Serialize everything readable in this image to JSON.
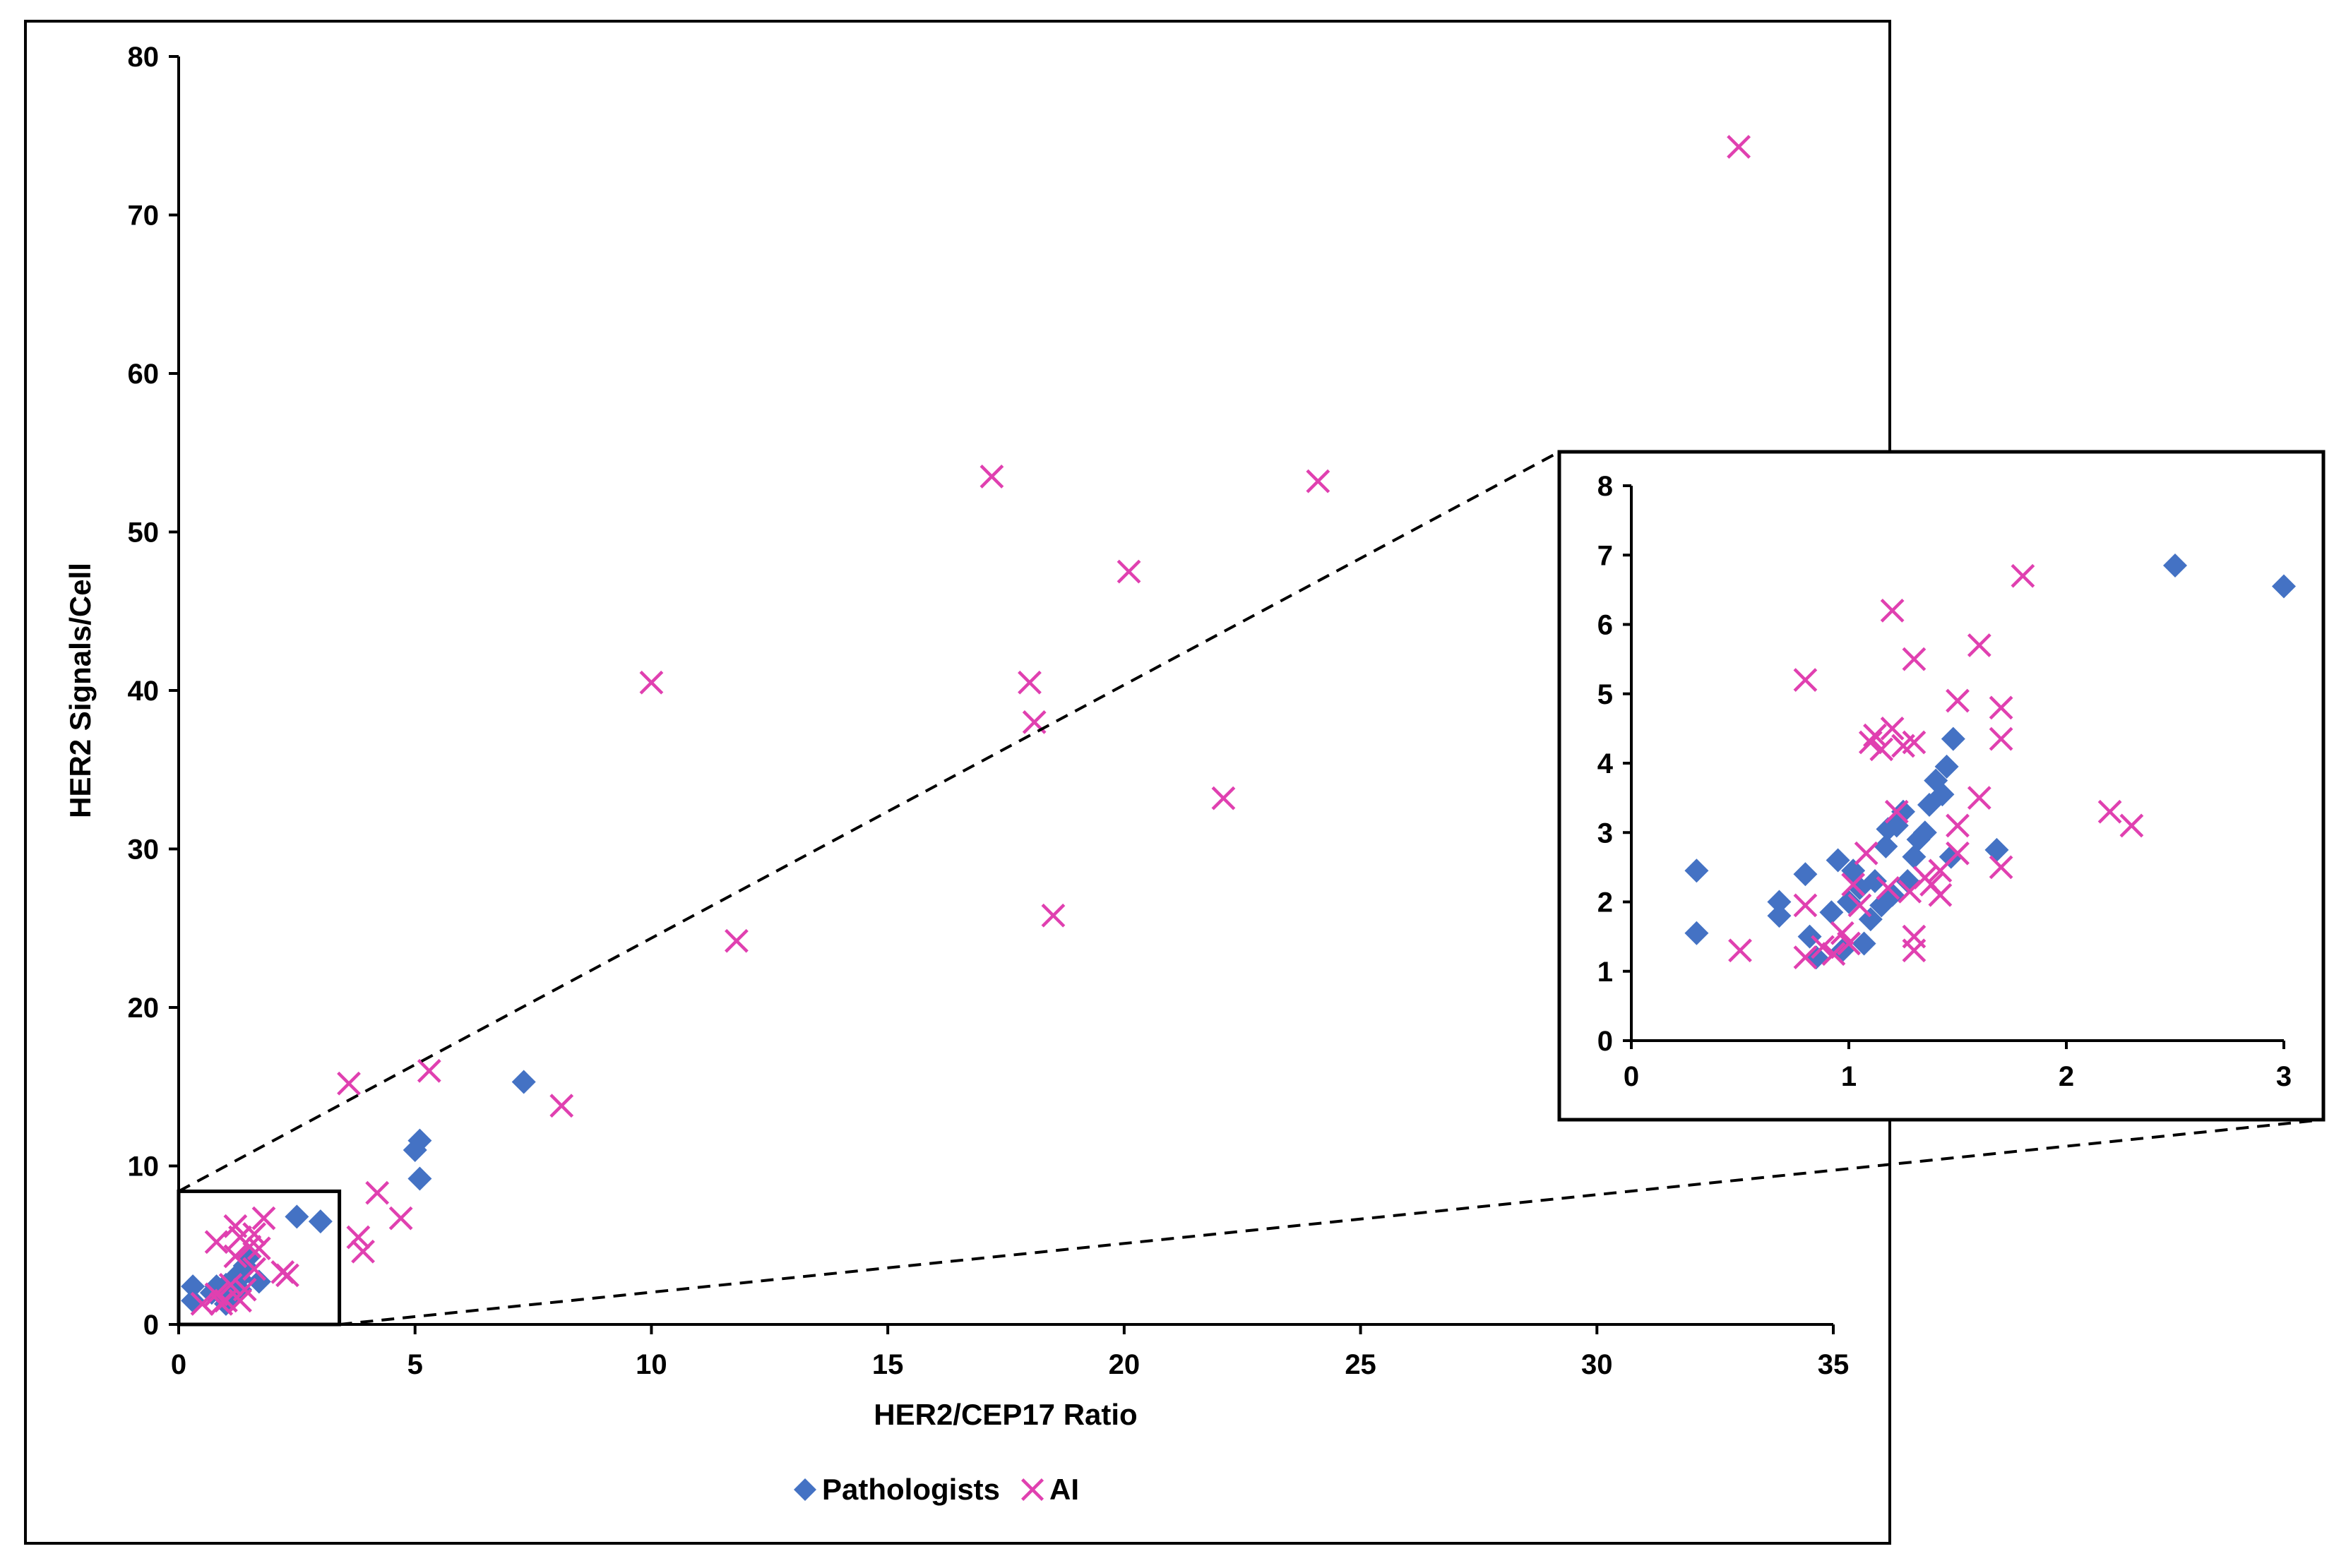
{
  "chart_data": [
    {
      "id": "main",
      "type": "scatter",
      "title": "",
      "xlabel": "HER2/CEP17 Ratio",
      "ylabel": "HER2 Signals/Cell",
      "xlim": [
        0,
        35
      ],
      "ylim": [
        0,
        80
      ],
      "xticks": [
        0,
        5,
        10,
        15,
        20,
        25,
        30,
        35
      ],
      "yticks": [
        0,
        10,
        20,
        30,
        40,
        50,
        60,
        70,
        80
      ],
      "grid": false,
      "legend": "bottom-center",
      "series": [
        {
          "name": "Pathologists",
          "marker": "diamond",
          "color": "#4472C4",
          "points": [
            [
              0.3,
              2.4
            ],
            [
              0.3,
              1.5
            ],
            [
              0.7,
              2.0
            ],
            [
              0.8,
              2.4
            ],
            [
              0.9,
              1.9
            ],
            [
              1.0,
              2.5
            ],
            [
              1.1,
              2.1
            ],
            [
              1.2,
              3.0
            ],
            [
              1.2,
              2.3
            ],
            [
              1.3,
              2.9
            ],
            [
              1.4,
              3.7
            ],
            [
              1.5,
              4.3
            ],
            [
              1.7,
              2.7
            ],
            [
              1.0,
              1.3
            ],
            [
              1.1,
              1.8
            ],
            [
              1.3,
              2.2
            ],
            [
              2.5,
              6.8
            ],
            [
              3.0,
              6.5
            ],
            [
              5.0,
              11.0
            ],
            [
              5.1,
              11.6
            ],
            [
              5.1,
              9.2
            ],
            [
              7.3,
              15.3
            ]
          ]
        },
        {
          "name": "AI",
          "marker": "x",
          "color": "#E040B0",
          "points": [
            [
              0.5,
              1.3
            ],
            [
              0.8,
              5.2
            ],
            [
              0.8,
              1.9
            ],
            [
              0.9,
              1.3
            ],
            [
              1.0,
              1.5
            ],
            [
              1.1,
              2.5
            ],
            [
              1.2,
              6.2
            ],
            [
              1.2,
              4.3
            ],
            [
              1.3,
              5.5
            ],
            [
              1.4,
              2.2
            ],
            [
              1.5,
              4.9
            ],
            [
              1.6,
              5.7
            ],
            [
              1.7,
              4.8
            ],
            [
              1.8,
              6.7
            ],
            [
              1.3,
              1.5
            ],
            [
              1.6,
              3.5
            ],
            [
              2.2,
              3.3
            ],
            [
              2.3,
              3.1
            ],
            [
              3.6,
              15.2
            ],
            [
              3.8,
              5.5
            ],
            [
              3.9,
              4.6
            ],
            [
              4.2,
              8.3
            ],
            [
              4.7,
              6.7
            ],
            [
              5.3,
              16.0
            ],
            [
              8.1,
              13.8
            ],
            [
              10.0,
              40.5
            ],
            [
              11.8,
              24.2
            ],
            [
              17.2,
              53.5
            ],
            [
              18.0,
              40.5
            ],
            [
              18.1,
              38.0
            ],
            [
              18.5,
              25.8
            ],
            [
              20.1,
              47.5
            ],
            [
              22.1,
              33.2
            ],
            [
              24.1,
              53.2
            ],
            [
              33.0,
              74.3
            ]
          ]
        }
      ],
      "zoom_box": {
        "xlim": [
          0,
          3.4
        ],
        "ylim": [
          0,
          8.4
        ]
      }
    },
    {
      "id": "inset",
      "type": "scatter",
      "title": "",
      "xlabel": "",
      "ylabel": "",
      "xlim": [
        0,
        3
      ],
      "ylim": [
        0,
        8
      ],
      "xticks": [
        0,
        1,
        2,
        3
      ],
      "yticks": [
        0,
        1,
        2,
        3,
        4,
        5,
        6,
        7,
        8
      ],
      "grid": false,
      "series": [
        {
          "name": "Pathologists",
          "marker": "diamond",
          "color": "#4472C4",
          "points": [
            [
              0.3,
              2.45
            ],
            [
              0.3,
              1.55
            ],
            [
              0.68,
              2.0
            ],
            [
              0.68,
              1.8
            ],
            [
              0.8,
              2.4
            ],
            [
              0.82,
              1.5
            ],
            [
              0.85,
              1.2
            ],
            [
              0.92,
              1.85
            ],
            [
              0.95,
              2.6
            ],
            [
              0.97,
              1.3
            ],
            [
              1.0,
              2.0
            ],
            [
              1.02,
              2.45
            ],
            [
              1.05,
              2.2
            ],
            [
              1.07,
              1.4
            ],
            [
              1.1,
              1.75
            ],
            [
              1.12,
              2.3
            ],
            [
              1.15,
              1.95
            ],
            [
              1.17,
              2.8
            ],
            [
              1.18,
              3.05
            ],
            [
              1.2,
              2.1
            ],
            [
              1.22,
              3.1
            ],
            [
              1.25,
              3.3
            ],
            [
              1.27,
              2.3
            ],
            [
              1.3,
              2.65
            ],
            [
              1.32,
              2.9
            ],
            [
              1.35,
              3.0
            ],
            [
              1.37,
              3.4
            ],
            [
              1.4,
              3.75
            ],
            [
              1.43,
              3.55
            ],
            [
              1.45,
              3.95
            ],
            [
              1.48,
              4.35
            ],
            [
              1.47,
              2.65
            ],
            [
              1.68,
              2.75
            ],
            [
              2.5,
              6.85
            ],
            [
              3.0,
              6.55
            ]
          ]
        },
        {
          "name": "AI",
          "marker": "x",
          "color": "#E040B0",
          "points": [
            [
              0.5,
              1.3
            ],
            [
              0.8,
              5.2
            ],
            [
              0.8,
              1.95
            ],
            [
              0.8,
              1.2
            ],
            [
              0.88,
              1.35
            ],
            [
              0.93,
              1.25
            ],
            [
              0.97,
              1.55
            ],
            [
              1.0,
              1.4
            ],
            [
              1.02,
              2.25
            ],
            [
              1.05,
              1.95
            ],
            [
              1.08,
              2.7
            ],
            [
              1.1,
              4.3
            ],
            [
              1.12,
              4.4
            ],
            [
              1.15,
              4.2
            ],
            [
              1.18,
              2.2
            ],
            [
              1.2,
              6.2
            ],
            [
              1.2,
              4.5
            ],
            [
              1.22,
              3.3
            ],
            [
              1.25,
              4.25
            ],
            [
              1.28,
              2.15
            ],
            [
              1.3,
              5.5
            ],
            [
              1.3,
              4.3
            ],
            [
              1.3,
              1.5
            ],
            [
              1.3,
              1.3
            ],
            [
              1.35,
              2.35
            ],
            [
              1.38,
              2.25
            ],
            [
              1.42,
              2.45
            ],
            [
              1.42,
              2.1
            ],
            [
              1.5,
              4.9
            ],
            [
              1.5,
              3.1
            ],
            [
              1.5,
              2.7
            ],
            [
              1.6,
              5.7
            ],
            [
              1.6,
              3.5
            ],
            [
              1.7,
              4.8
            ],
            [
              1.7,
              4.35
            ],
            [
              1.7,
              2.5
            ],
            [
              1.8,
              6.7
            ],
            [
              2.2,
              3.3
            ],
            [
              2.3,
              3.1
            ]
          ]
        }
      ]
    }
  ]
}
